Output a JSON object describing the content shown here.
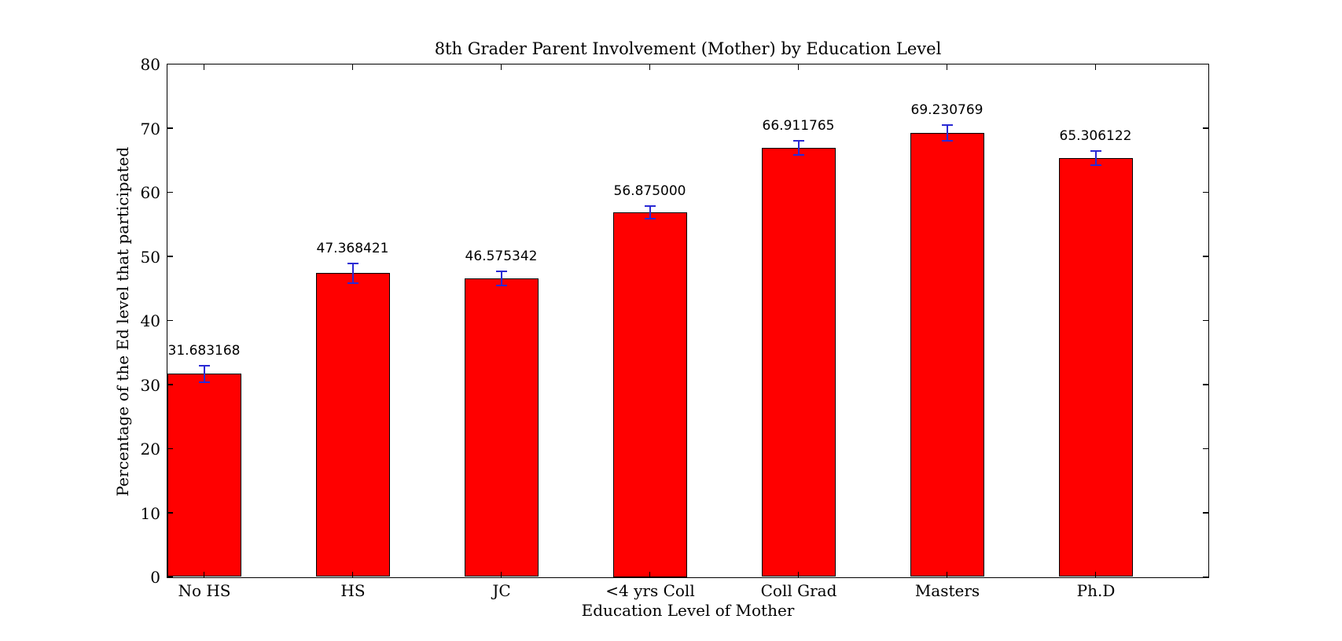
{
  "chart_data": {
    "type": "bar",
    "title": "8th Grader Parent Involvement (Mother) by Education Level",
    "xlabel": "Education Level of Mother",
    "ylabel": "Percentage of the Ed level that participated",
    "categories": [
      "No HS",
      "HS",
      "JC",
      "<4 yrs Coll",
      "Coll Grad",
      "Masters",
      "Ph.D"
    ],
    "values": [
      31.683168,
      47.368421,
      46.575342,
      56.875,
      66.911765,
      69.230769,
      65.306122
    ],
    "value_labels": [
      "31.683168",
      "47.368421",
      "46.575342",
      "56.875000",
      "66.911765",
      "69.230769",
      "65.306122"
    ],
    "yerr": [
      1.3,
      1.5,
      1.1,
      1.0,
      1.1,
      1.2,
      1.1
    ],
    "ylim": [
      0,
      80
    ],
    "ytick_labels": [
      "0",
      "10",
      "20",
      "30",
      "40",
      "50",
      "60",
      "70",
      "80"
    ],
    "grid": false,
    "legend": "none",
    "colors": {
      "background": "#ffffff",
      "bar_fill": "#ff0000",
      "bar_edge": "#000000",
      "error_bar": "#2a2ad4",
      "axis": "#000000",
      "text": "#000000"
    }
  }
}
